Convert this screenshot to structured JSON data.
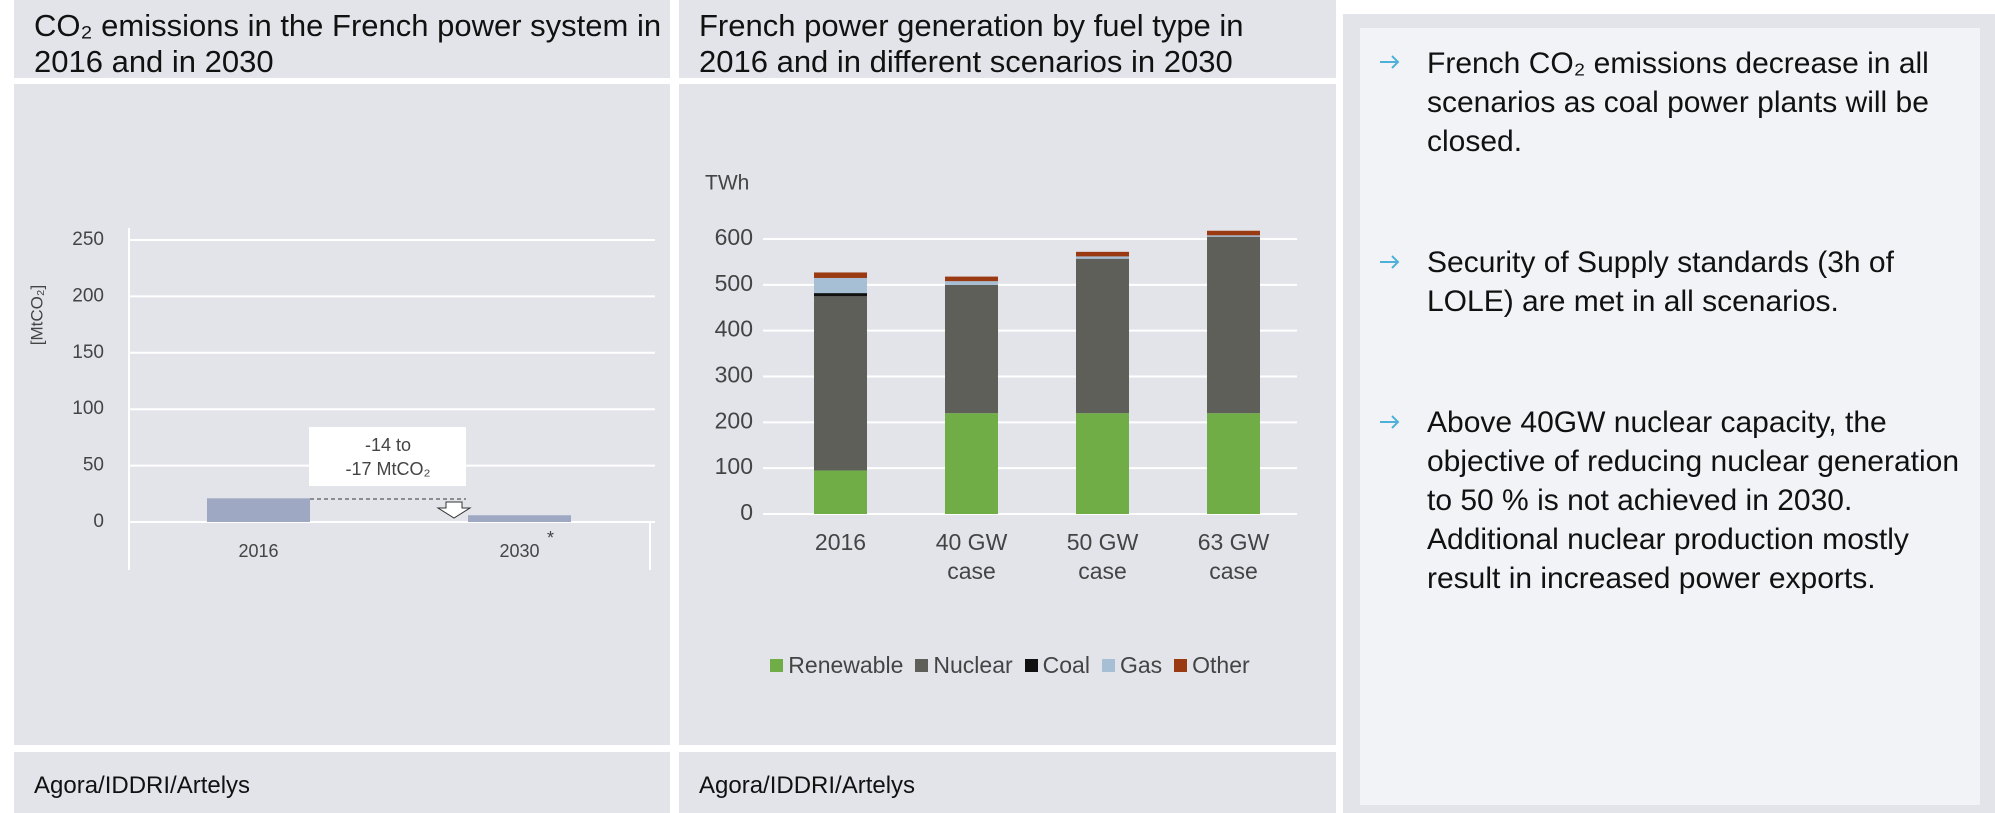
{
  "chart_data": [
    {
      "type": "bar",
      "title": "CO₂ emissions in the French power system in 2016 and in 2030",
      "ylabel": "[MtCO₂]",
      "categories": [
        "2016",
        "2030"
      ],
      "footnote_mark": "*",
      "values": [
        21,
        6
      ],
      "color": "#9ea8c2",
      "annotation": [
        "-14 to",
        "-17 MtCO₂"
      ],
      "ylim": [
        0,
        250
      ],
      "yticks": [
        0,
        50,
        100,
        150,
        200,
        250
      ],
      "grid": true,
      "source": "Agora/IDDRI/Artelys"
    },
    {
      "type": "stacked_bar",
      "title": "French power generation by fuel type in 2016 and in different scenarios in 2030",
      "ylabel": "TWh",
      "categories": [
        "2016",
        "40 GW case",
        "50 GW case",
        "63 GW case"
      ],
      "series": [
        {
          "name": "Renewable",
          "color": "#70ad47",
          "values": [
            95,
            220,
            220,
            220
          ]
        },
        {
          "name": "Nuclear",
          "color": "#5f5f5a",
          "values": [
            380,
            280,
            337,
            385
          ]
        },
        {
          "name": "Coal",
          "color": "#111111",
          "values": [
            7,
            0,
            0,
            0
          ]
        },
        {
          "name": "Gas",
          "color": "#a6bfd4",
          "values": [
            33,
            8,
            5,
            3
          ]
        },
        {
          "name": "Other",
          "color": "#9a3a12",
          "values": [
            12,
            10,
            10,
            10
          ]
        }
      ],
      "ylim": [
        0,
        600
      ],
      "yticks": [
        0,
        100,
        200,
        300,
        400,
        500,
        600
      ],
      "grid": true,
      "legend": "bottom",
      "source": "Agora/IDDRI/Artelys"
    }
  ],
  "bullets": [
    "French CO₂ emissions decrease in all scenarios as coal power plants will be closed.",
    "Security of Supply standards (3h of LOLE) are met in all scenarios.",
    "Above 40GW nuclear capacity, the objective of reducing nuclear generation to 50 % is not achieved in 2030. Additional nuclear production mostly result in increased power exports."
  ]
}
